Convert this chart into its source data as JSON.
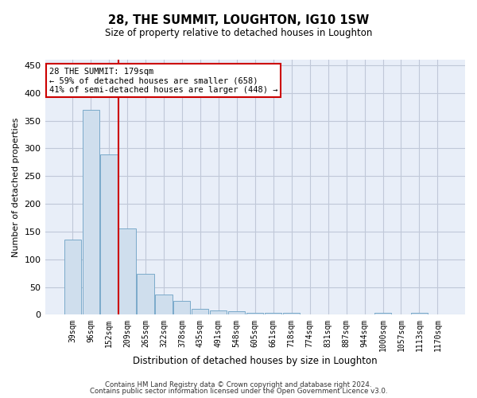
{
  "title": "28, THE SUMMIT, LOUGHTON, IG10 1SW",
  "subtitle": "Size of property relative to detached houses in Loughton",
  "xlabel": "Distribution of detached houses by size in Loughton",
  "ylabel": "Number of detached properties",
  "bar_labels": [
    "39sqm",
    "96sqm",
    "152sqm",
    "209sqm",
    "265sqm",
    "322sqm",
    "378sqm",
    "435sqm",
    "491sqm",
    "548sqm",
    "605sqm",
    "661sqm",
    "718sqm",
    "774sqm",
    "831sqm",
    "887sqm",
    "944sqm",
    "1000sqm",
    "1057sqm",
    "1113sqm",
    "1170sqm"
  ],
  "bar_values": [
    136,
    370,
    289,
    155,
    74,
    37,
    25,
    11,
    8,
    6,
    3,
    4,
    4,
    0,
    0,
    0,
    0,
    3,
    0,
    3,
    0
  ],
  "bar_color": "#cfdeed",
  "bar_edge_color": "#7aaaca",
  "grid_color": "#c0c8d8",
  "background_color": "#e8eef8",
  "vline_x": 2.5,
  "vline_color": "#cc0000",
  "annotation_line1": "28 THE SUMMIT: 179sqm",
  "annotation_line2": "← 59% of detached houses are smaller (658)",
  "annotation_line3": "41% of semi-detached houses are larger (448) →",
  "annotation_box_color": "white",
  "annotation_box_edge": "#cc0000",
  "ylim": [
    0,
    460
  ],
  "yticks": [
    0,
    50,
    100,
    150,
    200,
    250,
    300,
    350,
    400,
    450
  ],
  "footer1": "Contains HM Land Registry data © Crown copyright and database right 2024.",
  "footer2": "Contains public sector information licensed under the Open Government Licence v3.0."
}
